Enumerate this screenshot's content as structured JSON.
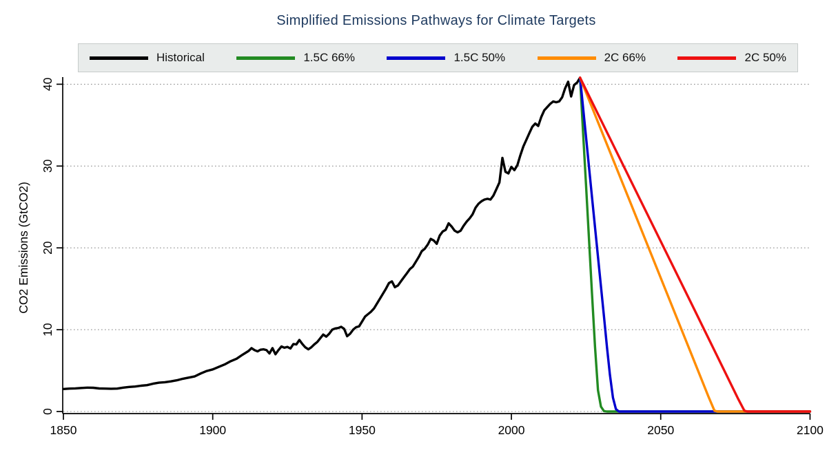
{
  "chart_data": {
    "type": "line",
    "title": "Simplified Emissions Pathways for Climate Targets",
    "title_color": "#1e3a5f",
    "xlabel": "",
    "ylabel": "CO2 Emissions (GtCO2)",
    "xlim": [
      1850,
      2100
    ],
    "ylim": [
      0,
      41
    ],
    "x_ticks": [
      "1850",
      "1900",
      "1950",
      "2000",
      "2050",
      "2100"
    ],
    "x_tick_values": [
      1850,
      1900,
      1950,
      2000,
      2050,
      2100
    ],
    "y_ticks": [
      "0",
      "10",
      "20",
      "30",
      "40"
    ],
    "y_tick_values": [
      0,
      10,
      20,
      30,
      40
    ],
    "grid": "horizontal dotted gridlines at every y tick, grid on",
    "grid_color": "#8c8c8c",
    "axis_color": "#000000",
    "legend_position": "top",
    "legend_bg": "#e9eceb",
    "legend_border": "#c6cbca",
    "series": [
      {
        "name": "Historical",
        "color": "#000000",
        "points": [
          [
            1850,
            2.75
          ],
          [
            1852,
            2.8
          ],
          [
            1854,
            2.83
          ],
          [
            1856,
            2.88
          ],
          [
            1858,
            2.92
          ],
          [
            1860,
            2.9
          ],
          [
            1862,
            2.82
          ],
          [
            1864,
            2.8
          ],
          [
            1866,
            2.78
          ],
          [
            1868,
            2.8
          ],
          [
            1870,
            2.92
          ],
          [
            1872,
            3.0
          ],
          [
            1874,
            3.05
          ],
          [
            1876,
            3.15
          ],
          [
            1878,
            3.22
          ],
          [
            1880,
            3.4
          ],
          [
            1882,
            3.52
          ],
          [
            1884,
            3.58
          ],
          [
            1886,
            3.68
          ],
          [
            1888,
            3.82
          ],
          [
            1890,
            4.0
          ],
          [
            1892,
            4.15
          ],
          [
            1894,
            4.3
          ],
          [
            1896,
            4.65
          ],
          [
            1898,
            4.95
          ],
          [
            1900,
            5.15
          ],
          [
            1902,
            5.45
          ],
          [
            1904,
            5.75
          ],
          [
            1906,
            6.15
          ],
          [
            1908,
            6.45
          ],
          [
            1910,
            6.95
          ],
          [
            1912,
            7.4
          ],
          [
            1913,
            7.75
          ],
          [
            1914,
            7.5
          ],
          [
            1915,
            7.35
          ],
          [
            1916,
            7.55
          ],
          [
            1917,
            7.6
          ],
          [
            1918,
            7.5
          ],
          [
            1919,
            7.1
          ],
          [
            1920,
            7.75
          ],
          [
            1921,
            7.0
          ],
          [
            1922,
            7.5
          ],
          [
            1923,
            7.95
          ],
          [
            1924,
            7.8
          ],
          [
            1925,
            7.9
          ],
          [
            1926,
            7.7
          ],
          [
            1927,
            8.25
          ],
          [
            1928,
            8.2
          ],
          [
            1929,
            8.75
          ],
          [
            1930,
            8.25
          ],
          [
            1931,
            7.85
          ],
          [
            1932,
            7.6
          ],
          [
            1933,
            7.85
          ],
          [
            1934,
            8.2
          ],
          [
            1935,
            8.5
          ],
          [
            1936,
            8.95
          ],
          [
            1937,
            9.4
          ],
          [
            1938,
            9.15
          ],
          [
            1939,
            9.5
          ],
          [
            1940,
            10.0
          ],
          [
            1941,
            10.15
          ],
          [
            1942,
            10.2
          ],
          [
            1943,
            10.35
          ],
          [
            1944,
            10.1
          ],
          [
            1945,
            9.2
          ],
          [
            1946,
            9.5
          ],
          [
            1947,
            10.0
          ],
          [
            1948,
            10.3
          ],
          [
            1949,
            10.4
          ],
          [
            1950,
            11.0
          ],
          [
            1951,
            11.6
          ],
          [
            1952,
            11.9
          ],
          [
            1953,
            12.2
          ],
          [
            1954,
            12.6
          ],
          [
            1955,
            13.2
          ],
          [
            1956,
            13.8
          ],
          [
            1957,
            14.4
          ],
          [
            1958,
            15.0
          ],
          [
            1959,
            15.7
          ],
          [
            1960,
            15.9
          ],
          [
            1961,
            15.2
          ],
          [
            1962,
            15.4
          ],
          [
            1963,
            15.9
          ],
          [
            1964,
            16.4
          ],
          [
            1965,
            16.9
          ],
          [
            1966,
            17.4
          ],
          [
            1967,
            17.7
          ],
          [
            1968,
            18.3
          ],
          [
            1969,
            18.9
          ],
          [
            1970,
            19.6
          ],
          [
            1971,
            19.9
          ],
          [
            1972,
            20.4
          ],
          [
            1973,
            21.1
          ],
          [
            1974,
            20.9
          ],
          [
            1975,
            20.5
          ],
          [
            1976,
            21.5
          ],
          [
            1977,
            22.0
          ],
          [
            1978,
            22.2
          ],
          [
            1979,
            23.0
          ],
          [
            1980,
            22.6
          ],
          [
            1981,
            22.1
          ],
          [
            1982,
            21.9
          ],
          [
            1983,
            22.1
          ],
          [
            1984,
            22.7
          ],
          [
            1985,
            23.2
          ],
          [
            1986,
            23.6
          ],
          [
            1987,
            24.1
          ],
          [
            1988,
            24.9
          ],
          [
            1989,
            25.4
          ],
          [
            1990,
            25.7
          ],
          [
            1991,
            25.9
          ],
          [
            1992,
            26.0
          ],
          [
            1993,
            25.9
          ],
          [
            1994,
            26.4
          ],
          [
            1995,
            27.2
          ],
          [
            1996,
            28.0
          ],
          [
            1997,
            31.0
          ],
          [
            1998,
            29.3
          ],
          [
            1999,
            29.1
          ],
          [
            2000,
            29.9
          ],
          [
            2001,
            29.5
          ],
          [
            2002,
            30.1
          ],
          [
            2003,
            31.3
          ],
          [
            2004,
            32.4
          ],
          [
            2005,
            33.2
          ],
          [
            2006,
            34.0
          ],
          [
            2007,
            34.8
          ],
          [
            2008,
            35.2
          ],
          [
            2009,
            34.9
          ],
          [
            2010,
            36.0
          ],
          [
            2011,
            36.8
          ],
          [
            2012,
            37.2
          ],
          [
            2013,
            37.6
          ],
          [
            2014,
            37.9
          ],
          [
            2015,
            37.8
          ],
          [
            2016,
            37.9
          ],
          [
            2017,
            38.4
          ],
          [
            2018,
            39.5
          ],
          [
            2019,
            40.3
          ],
          [
            2020,
            38.5
          ],
          [
            2021,
            39.9
          ],
          [
            2022,
            40.2
          ],
          [
            2023,
            40.8
          ]
        ]
      },
      {
        "name": "1.5C 66%",
        "color": "#228B22",
        "points": [
          [
            2023,
            40.8
          ],
          [
            2024,
            34.2
          ],
          [
            2025,
            27.6
          ],
          [
            2026,
            21.0
          ],
          [
            2027,
            14.4
          ],
          [
            2028,
            7.9
          ],
          [
            2029,
            2.6
          ],
          [
            2030,
            0.6
          ],
          [
            2031,
            0.05
          ],
          [
            2032,
            0
          ],
          [
            2100,
            0
          ]
        ]
      },
      {
        "name": "1.5C 50%",
        "color": "#0000CD",
        "points": [
          [
            2023,
            40.8
          ],
          [
            2025,
            33.5
          ],
          [
            2027,
            26.2
          ],
          [
            2029,
            18.9
          ],
          [
            2031,
            11.6
          ],
          [
            2032,
            7.9
          ],
          [
            2033,
            4.5
          ],
          [
            2034,
            1.7
          ],
          [
            2035,
            0.3
          ],
          [
            2036,
            0
          ],
          [
            2100,
            0
          ]
        ]
      },
      {
        "name": "2C 66%",
        "color": "#FF8C00",
        "points": [
          [
            2023,
            40.8
          ],
          [
            2040,
            25.4
          ],
          [
            2055,
            11.8
          ],
          [
            2066,
            1.8
          ],
          [
            2068,
            0.1
          ],
          [
            2069,
            0
          ],
          [
            2100,
            0
          ]
        ]
      },
      {
        "name": "2C 50%",
        "color": "#EE1111",
        "points": [
          [
            2023,
            40.8
          ],
          [
            2040,
            28.2
          ],
          [
            2060,
            13.4
          ],
          [
            2076,
            1.5
          ],
          [
            2078,
            0.1
          ],
          [
            2079,
            0
          ],
          [
            2100,
            0
          ]
        ]
      }
    ]
  }
}
